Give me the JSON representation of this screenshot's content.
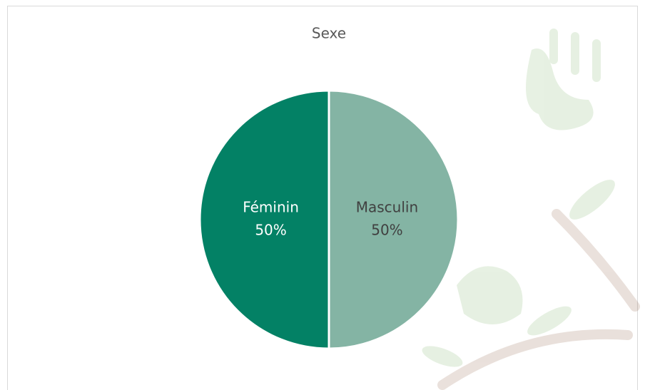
{
  "chart_data": {
    "type": "pie",
    "title": "Sexe",
    "categories": [
      "Masculin",
      "Féminin"
    ],
    "values": [
      50,
      50
    ],
    "value_labels": [
      "50%",
      "50%"
    ],
    "colors": [
      "#84b4a4",
      "#038165"
    ]
  }
}
